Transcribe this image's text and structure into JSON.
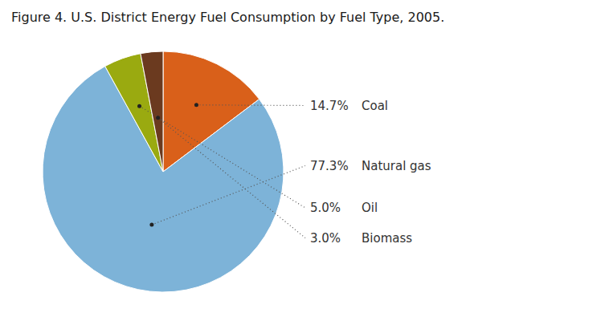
{
  "chart_data": {
    "type": "pie",
    "title": "Figure 4. U.S. District Energy Fuel Consumption by Fuel Type, 2005.",
    "categories": [
      "Coal",
      "Natural gas",
      "Oil",
      "Biomass"
    ],
    "values": [
      14.7,
      77.3,
      5.0,
      3.0
    ],
    "value_labels": [
      "14.7%",
      "77.3%",
      "5.0%",
      "3.0%"
    ],
    "colors": [
      "#d9601a",
      "#7db3d8",
      "#9aaa10",
      "#6b3a1f"
    ],
    "data_labels": true
  }
}
